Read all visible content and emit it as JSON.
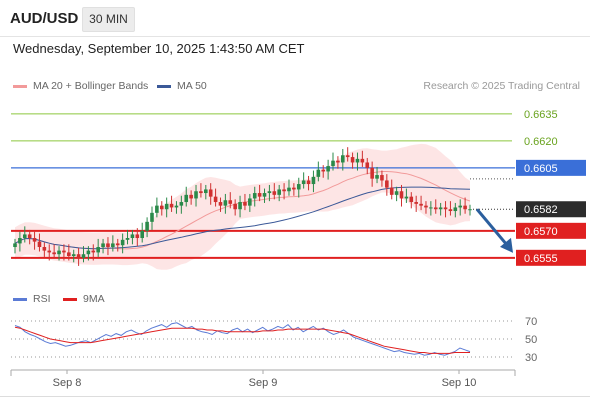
{
  "header": {
    "symbol": "AUD/USD",
    "timeframe": "30 MIN",
    "datetime": "Wednesday, September 10, 2025 1:43:50 AM CET"
  },
  "legend": {
    "ma20_label": "MA 20 + Bollinger Bands",
    "ma50_label": "MA 50",
    "credit": "Research © 2025 Trading Central"
  },
  "rsi_legend": {
    "rsi_label": "RSI",
    "ma9_label": "9MA"
  },
  "colors": {
    "ma20": "#f29a9a",
    "ma50": "#3b5998",
    "band": "#fde0e0",
    "green_level": "#8cc63f",
    "blue_level": "#3a6fd8",
    "red_level": "#e02020",
    "up_candle": "#2a8a4a",
    "down_candle": "#d03030",
    "arrow": "#2b5f9e",
    "rsi": "#5b7bd5",
    "rsi_ma": "#e02020"
  },
  "chart_data": {
    "type": "candlestick",
    "ylim": [
      0.6541,
      0.66455
    ],
    "x_tick_labels": [
      "Sep 8",
      "Sep 9",
      "Sep 10"
    ],
    "levels": [
      {
        "value": 0.6635,
        "label": "0.6635",
        "style": "green-line"
      },
      {
        "value": 0.662,
        "label": "0.6620",
        "style": "green-line"
      },
      {
        "value": 0.6605,
        "label": "0.6605",
        "style": "blue-line"
      },
      {
        "value": 0.657,
        "label": "0.6570",
        "style": "red-line"
      },
      {
        "value": 0.6555,
        "label": "0.6555",
        "style": "red-line"
      }
    ],
    "last_price": {
      "value": 0.6582,
      "label": "0.6582"
    },
    "closes": [
      0.6563,
      0.6566,
      0.6568,
      0.6566,
      0.6564,
      0.6561,
      0.6559,
      0.6558,
      0.6557,
      0.6559,
      0.6558,
      0.6556,
      0.6557,
      0.6555,
      0.6557,
      0.6559,
      0.6558,
      0.6561,
      0.6563,
      0.6561,
      0.6563,
      0.6562,
      0.6565,
      0.6566,
      0.6568,
      0.6566,
      0.657,
      0.6575,
      0.658,
      0.6584,
      0.6582,
      0.6585,
      0.6583,
      0.6584,
      0.6586,
      0.659,
      0.6588,
      0.6592,
      0.6591,
      0.6593,
      0.6589,
      0.6586,
      0.6584,
      0.6587,
      0.6585,
      0.6582,
      0.6586,
      0.6584,
      0.6588,
      0.6591,
      0.6589,
      0.6591,
      0.6592,
      0.659,
      0.6593,
      0.6592,
      0.6594,
      0.6593,
      0.6596,
      0.6598,
      0.6596,
      0.66,
      0.6604,
      0.6603,
      0.6606,
      0.6609,
      0.6608,
      0.6612,
      0.6611,
      0.6608,
      0.661,
      0.6608,
      0.6605,
      0.6599,
      0.6601,
      0.6598,
      0.6594,
      0.659,
      0.6592,
      0.6588,
      0.6589,
      0.6586,
      0.6585,
      0.6584,
      0.6583,
      0.6583,
      0.6582,
      0.6583,
      0.6582,
      0.6581,
      0.6583,
      0.6584,
      0.6582,
      0.6582
    ],
    "rsi": {
      "ylim": [
        20,
        80
      ],
      "tick_labels": [
        {
          "value": 70,
          "label": "70"
        },
        {
          "value": 50,
          "label": "50"
        },
        {
          "value": 30,
          "label": "30"
        }
      ],
      "rsi_values": [
        65,
        63,
        58,
        55,
        53,
        50,
        47,
        45,
        46,
        44,
        42,
        43,
        45,
        47,
        48,
        46,
        49,
        52,
        55,
        53,
        56,
        54,
        58,
        60,
        57,
        55,
        59,
        62,
        64,
        66,
        63,
        67,
        68,
        65,
        62,
        64,
        60,
        58,
        57,
        55,
        59,
        57,
        56,
        60,
        62,
        58,
        61,
        57,
        60,
        63,
        59,
        61,
        64,
        62,
        66,
        60,
        63,
        58,
        61,
        64,
        60,
        62,
        58,
        55,
        57,
        60,
        56,
        52,
        50,
        48,
        46,
        44,
        42,
        40,
        38,
        36,
        37,
        35,
        34,
        33,
        34,
        32,
        33,
        35,
        33,
        32,
        34,
        36,
        40,
        38,
        36
      ],
      "rsi_ma_values": [
        63,
        62,
        60,
        58,
        56,
        54,
        52,
        50,
        49,
        48,
        47,
        46,
        46,
        46,
        46,
        46,
        47,
        48,
        49,
        50,
        51,
        52,
        53,
        54,
        55,
        56,
        57,
        58,
        59,
        60,
        61,
        62,
        62,
        62,
        62,
        62,
        61,
        61,
        60,
        60,
        59,
        59,
        58,
        58,
        58,
        58,
        58,
        58,
        58,
        59,
        59,
        59,
        60,
        60,
        61,
        61,
        61,
        61,
        61,
        61,
        61,
        61,
        60,
        59,
        58,
        57,
        56,
        54,
        52,
        50,
        48,
        46,
        44,
        42,
        41,
        40,
        39,
        38,
        37,
        36,
        35,
        35,
        34,
        34,
        34,
        34,
        34,
        35,
        35,
        35,
        35
      ]
    }
  }
}
